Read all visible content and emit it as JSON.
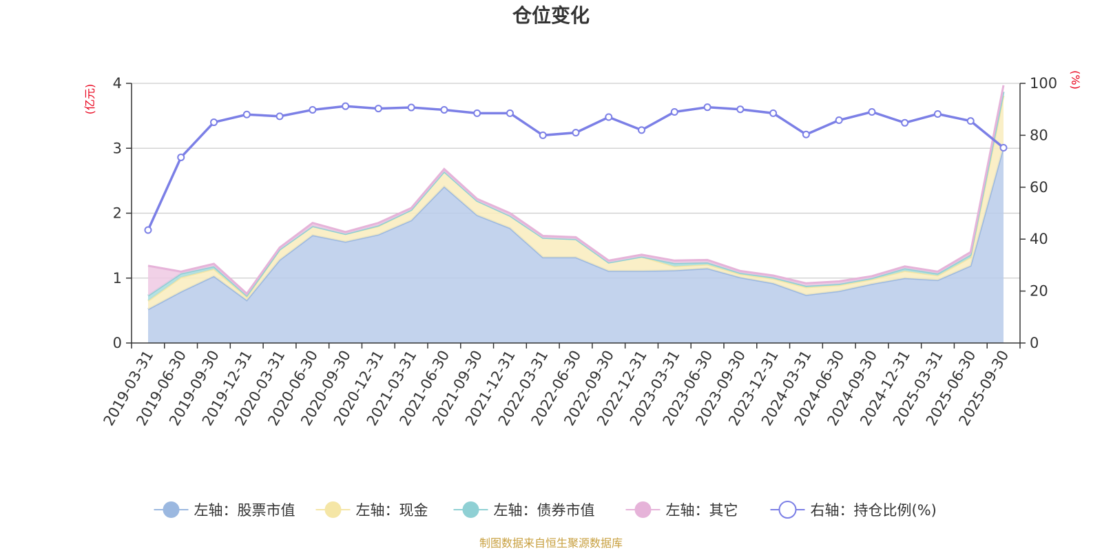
{
  "chart_data": {
    "type": "area",
    "title": "仓位变化",
    "left_axis_unit": "(亿元)",
    "right_axis_unit": "(%)",
    "left_ylim": [
      0,
      4
    ],
    "left_yticks": [
      0,
      1,
      2,
      3,
      4
    ],
    "right_ylim": [
      0,
      100
    ],
    "right_yticks": [
      0,
      20,
      40,
      60,
      80,
      100
    ],
    "grid": true,
    "legend_position": "bottom",
    "x": [
      "2019-03-31",
      "2019-06-30",
      "2019-09-30",
      "2019-12-31",
      "2020-03-31",
      "2020-06-30",
      "2020-09-30",
      "2020-12-31",
      "2021-03-31",
      "2021-06-30",
      "2021-09-30",
      "2021-12-31",
      "2022-03-31",
      "2022-06-30",
      "2022-09-30",
      "2022-12-31",
      "2023-03-31",
      "2023-06-30",
      "2023-09-30",
      "2023-12-31",
      "2024-03-31",
      "2024-06-30",
      "2024-09-30",
      "2024-12-31",
      "2025-03-31",
      "2025-06-30",
      "2025-09-30"
    ],
    "series": [
      {
        "name": "左轴：股票市值",
        "axis": "left",
        "stack": true,
        "color": "#9bb8e0",
        "fill": "#b8cbea",
        "values": [
          0.52,
          0.79,
          1.03,
          0.66,
          1.28,
          1.66,
          1.56,
          1.67,
          1.89,
          2.41,
          1.97,
          1.77,
          1.32,
          1.32,
          1.11,
          1.11,
          1.12,
          1.15,
          1.01,
          0.92,
          0.74,
          0.8,
          0.91,
          1.0,
          0.97,
          1.19,
          3.02
        ]
      },
      {
        "name": "左轴：现金",
        "axis": "left",
        "stack": true,
        "color": "#f5e6a6",
        "fill": "#f9ecbd",
        "values": [
          0.13,
          0.22,
          0.11,
          0.05,
          0.16,
          0.14,
          0.12,
          0.13,
          0.16,
          0.23,
          0.22,
          0.19,
          0.3,
          0.28,
          0.13,
          0.22,
          0.06,
          0.06,
          0.05,
          0.07,
          0.12,
          0.09,
          0.07,
          0.11,
          0.07,
          0.13,
          0.79
        ]
      },
      {
        "name": "左轴：债券市值",
        "axis": "left",
        "stack": true,
        "color": "#8fd0d4",
        "fill": "#a7dcdf",
        "values": [
          0.08,
          0.06,
          0.04,
          0.02,
          0.0,
          0.0,
          0.0,
          0.01,
          0.0,
          0.0,
          0.0,
          0.0,
          0.0,
          0.0,
          0.0,
          0.0,
          0.05,
          0.03,
          0.02,
          0.02,
          0.02,
          0.02,
          0.02,
          0.04,
          0.03,
          0.04,
          0.06
        ]
      },
      {
        "name": "左轴：其它",
        "axis": "left",
        "stack": true,
        "color": "#e6b3d9",
        "fill": "#efc9e3",
        "values": [
          0.46,
          0.03,
          0.04,
          0.03,
          0.03,
          0.05,
          0.03,
          0.04,
          0.03,
          0.04,
          0.03,
          0.04,
          0.03,
          0.03,
          0.03,
          0.03,
          0.04,
          0.04,
          0.03,
          0.03,
          0.04,
          0.04,
          0.03,
          0.03,
          0.03,
          0.04,
          0.1
        ]
      },
      {
        "name": "右轴：持仓比例(%)",
        "axis": "right",
        "stack": false,
        "color": "#7b7fe6",
        "fill": "none",
        "values": [
          43.5,
          71.5,
          85,
          88,
          87.3,
          89.8,
          91.2,
          90.3,
          90.7,
          89.8,
          88.5,
          88.5,
          80,
          81,
          87,
          82,
          89,
          90.8,
          90,
          88.5,
          80.3,
          85.8,
          89,
          84.8,
          88.2,
          85.5,
          75.2
        ]
      }
    ]
  },
  "source_text": "制图数据来自恒生聚源数据库"
}
